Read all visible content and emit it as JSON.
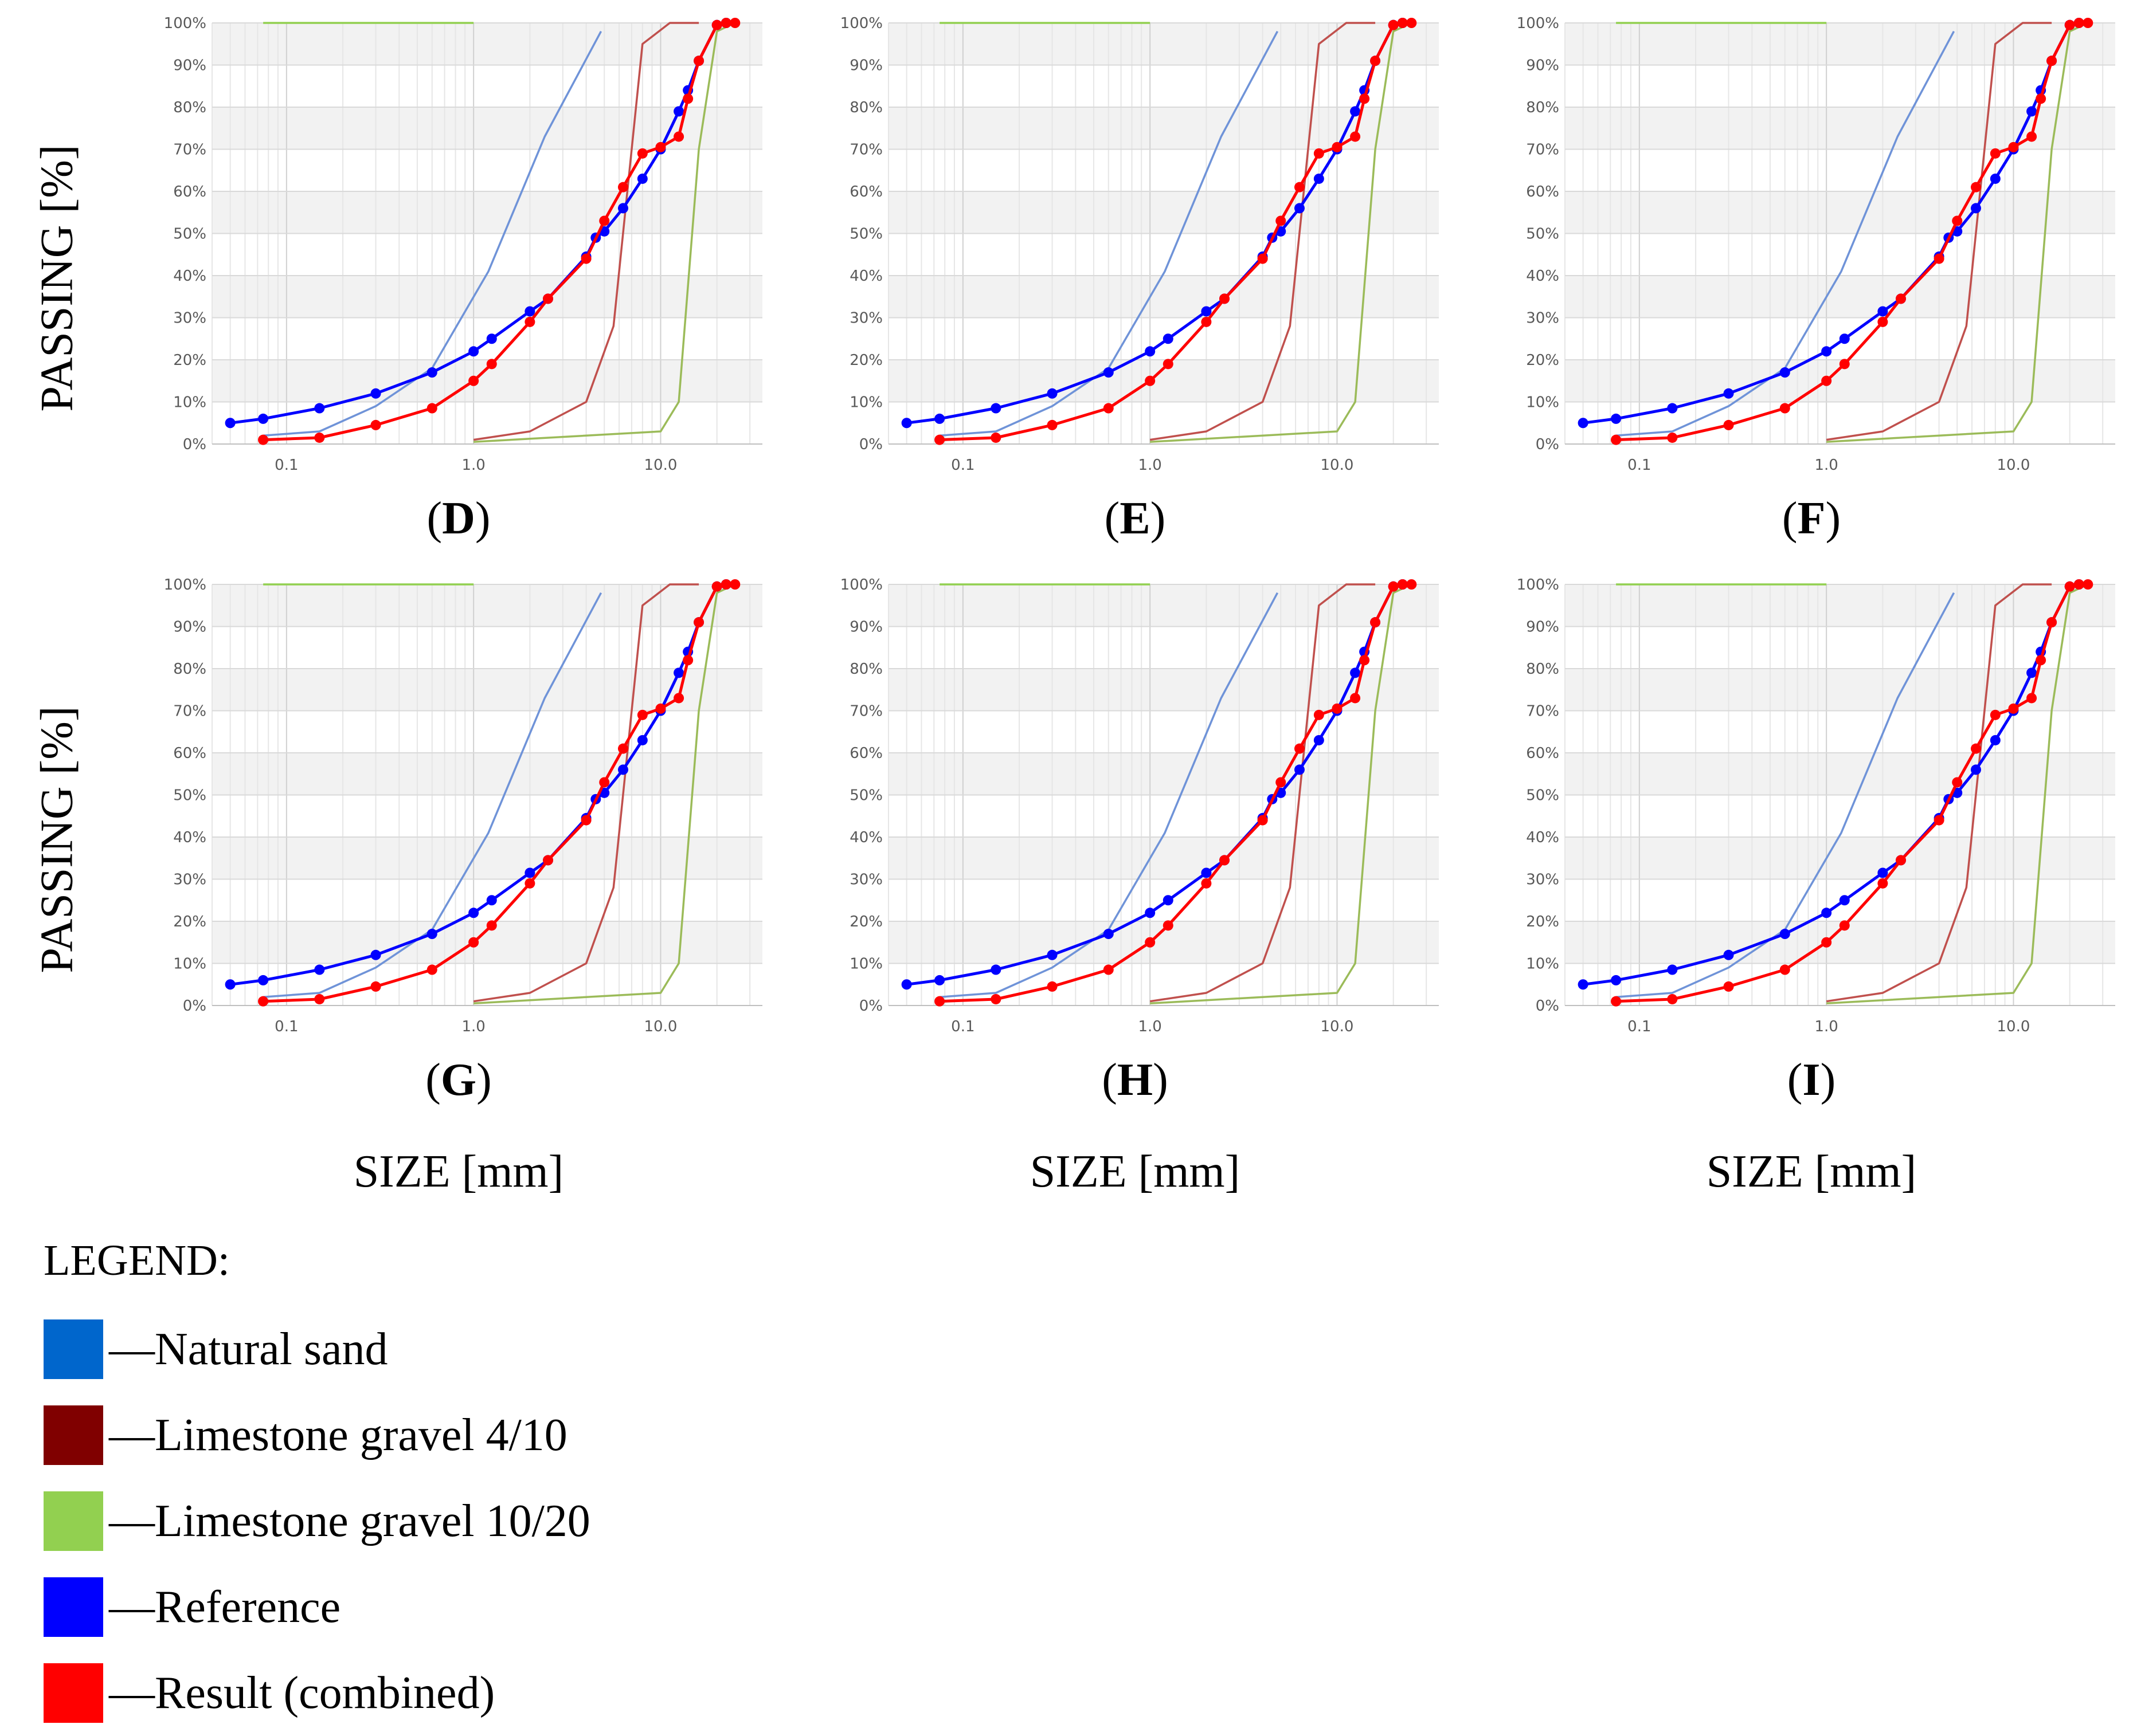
{
  "figure": {
    "x_axis_title": "SIZE [mm]",
    "y_axis_title": "PASSING [%]"
  },
  "legend": {
    "title": "LEGEND:",
    "items": [
      {
        "label": "—Natural sand",
        "color": "#0066CC"
      },
      {
        "label": "—Limestone gravel 4/10",
        "color": "#800000"
      },
      {
        "label": "—Limestone gravel 10/20",
        "color": "#92D050"
      },
      {
        "label": "—Reference",
        "color": "#0000FF"
      },
      {
        "label": "—Result (combined)",
        "color": "#FF0000"
      }
    ]
  },
  "panels": [
    {
      "id": "D",
      "label_open": "(",
      "label_letter": "D",
      "label_close": ")"
    },
    {
      "id": "E",
      "label_open": "(",
      "label_letter": "E",
      "label_close": ")"
    },
    {
      "id": "F",
      "label_open": "(",
      "label_letter": "F",
      "label_close": ")"
    },
    {
      "id": "G",
      "label_open": "(",
      "label_letter": "G",
      "label_close": ")"
    },
    {
      "id": "H",
      "label_open": "(",
      "label_letter": "H",
      "label_close": ")"
    },
    {
      "id": "I",
      "label_open": "(",
      "label_letter": "I",
      "label_close": ")"
    }
  ],
  "chart_data": {
    "type": "line",
    "x_scale": "log",
    "xlim": [
      0.04,
      35
    ],
    "ylim": [
      0,
      100
    ],
    "y_ticks": [
      "0%",
      "10%",
      "20%",
      "30%",
      "40%",
      "50%",
      "60%",
      "70%",
      "80%",
      "90%",
      "100%"
    ],
    "x_ticks": [
      "0.1",
      "1.0",
      "10.0"
    ],
    "x_tick_values": [
      0.1,
      1.0,
      10.0
    ],
    "xlabel": "SIZE [mm]",
    "ylabel": "PASSING [%]",
    "panels": [
      "D",
      "E",
      "F",
      "G",
      "H",
      "I"
    ],
    "series": [
      {
        "name": "Natural sand",
        "color": "#6F93D8",
        "markers": false,
        "x": [
          0.075,
          0.15,
          0.3,
          0.6,
          1.2,
          2.4,
          4.8
        ],
        "y": [
          2,
          3,
          9,
          18,
          41,
          73,
          98
        ]
      },
      {
        "name": "Natural sand (top)",
        "color": "#92D050",
        "markers": false,
        "x": [
          0.075,
          1.0
        ],
        "y": [
          100,
          100
        ]
      },
      {
        "name": "Limestone gravel 4/10",
        "color": "#C0504D",
        "markers": false,
        "x": [
          1.0,
          2.0,
          4.0,
          5.6,
          8.0,
          11.2,
          16
        ],
        "y": [
          1,
          3,
          10,
          28,
          95,
          100,
          100
        ]
      },
      {
        "name": "Limestone gravel 10/20",
        "color": "#9BBB59",
        "markers": false,
        "x": [
          1.0,
          10.0,
          12.5,
          16.0,
          20.0,
          25.0
        ],
        "y": [
          0.5,
          3,
          10,
          70,
          98,
          100
        ]
      },
      {
        "name": "Reference",
        "color": "#0000FF",
        "markers": true,
        "x": [
          0.05,
          0.075,
          0.15,
          0.3,
          0.6,
          1.0,
          1.25,
          2.0,
          2.5,
          4.0,
          4.5,
          5.0,
          6.3,
          8.0,
          10.0,
          12.5,
          14.0,
          16.0,
          20.0,
          22.4
        ],
        "y": [
          5,
          6,
          8.5,
          12,
          17,
          22,
          25,
          31.5,
          34.5,
          44.5,
          49,
          50.5,
          56,
          63,
          70,
          79,
          84,
          91,
          99.5,
          100
        ]
      },
      {
        "name": "Result (combined)",
        "color": "#FF0000",
        "markers": true,
        "x": [
          0.075,
          0.15,
          0.3,
          0.6,
          1.0,
          1.25,
          2.0,
          2.5,
          4.0,
          5.0,
          6.3,
          8.0,
          10.0,
          12.5,
          14.0,
          16.0,
          20.0,
          22.4,
          25.0
        ],
        "y": [
          1,
          1.5,
          4.5,
          8.5,
          15,
          19,
          29,
          34.5,
          44,
          53,
          61,
          69,
          70.5,
          73,
          82,
          91,
          99.5,
          100,
          100
        ]
      }
    ]
  }
}
